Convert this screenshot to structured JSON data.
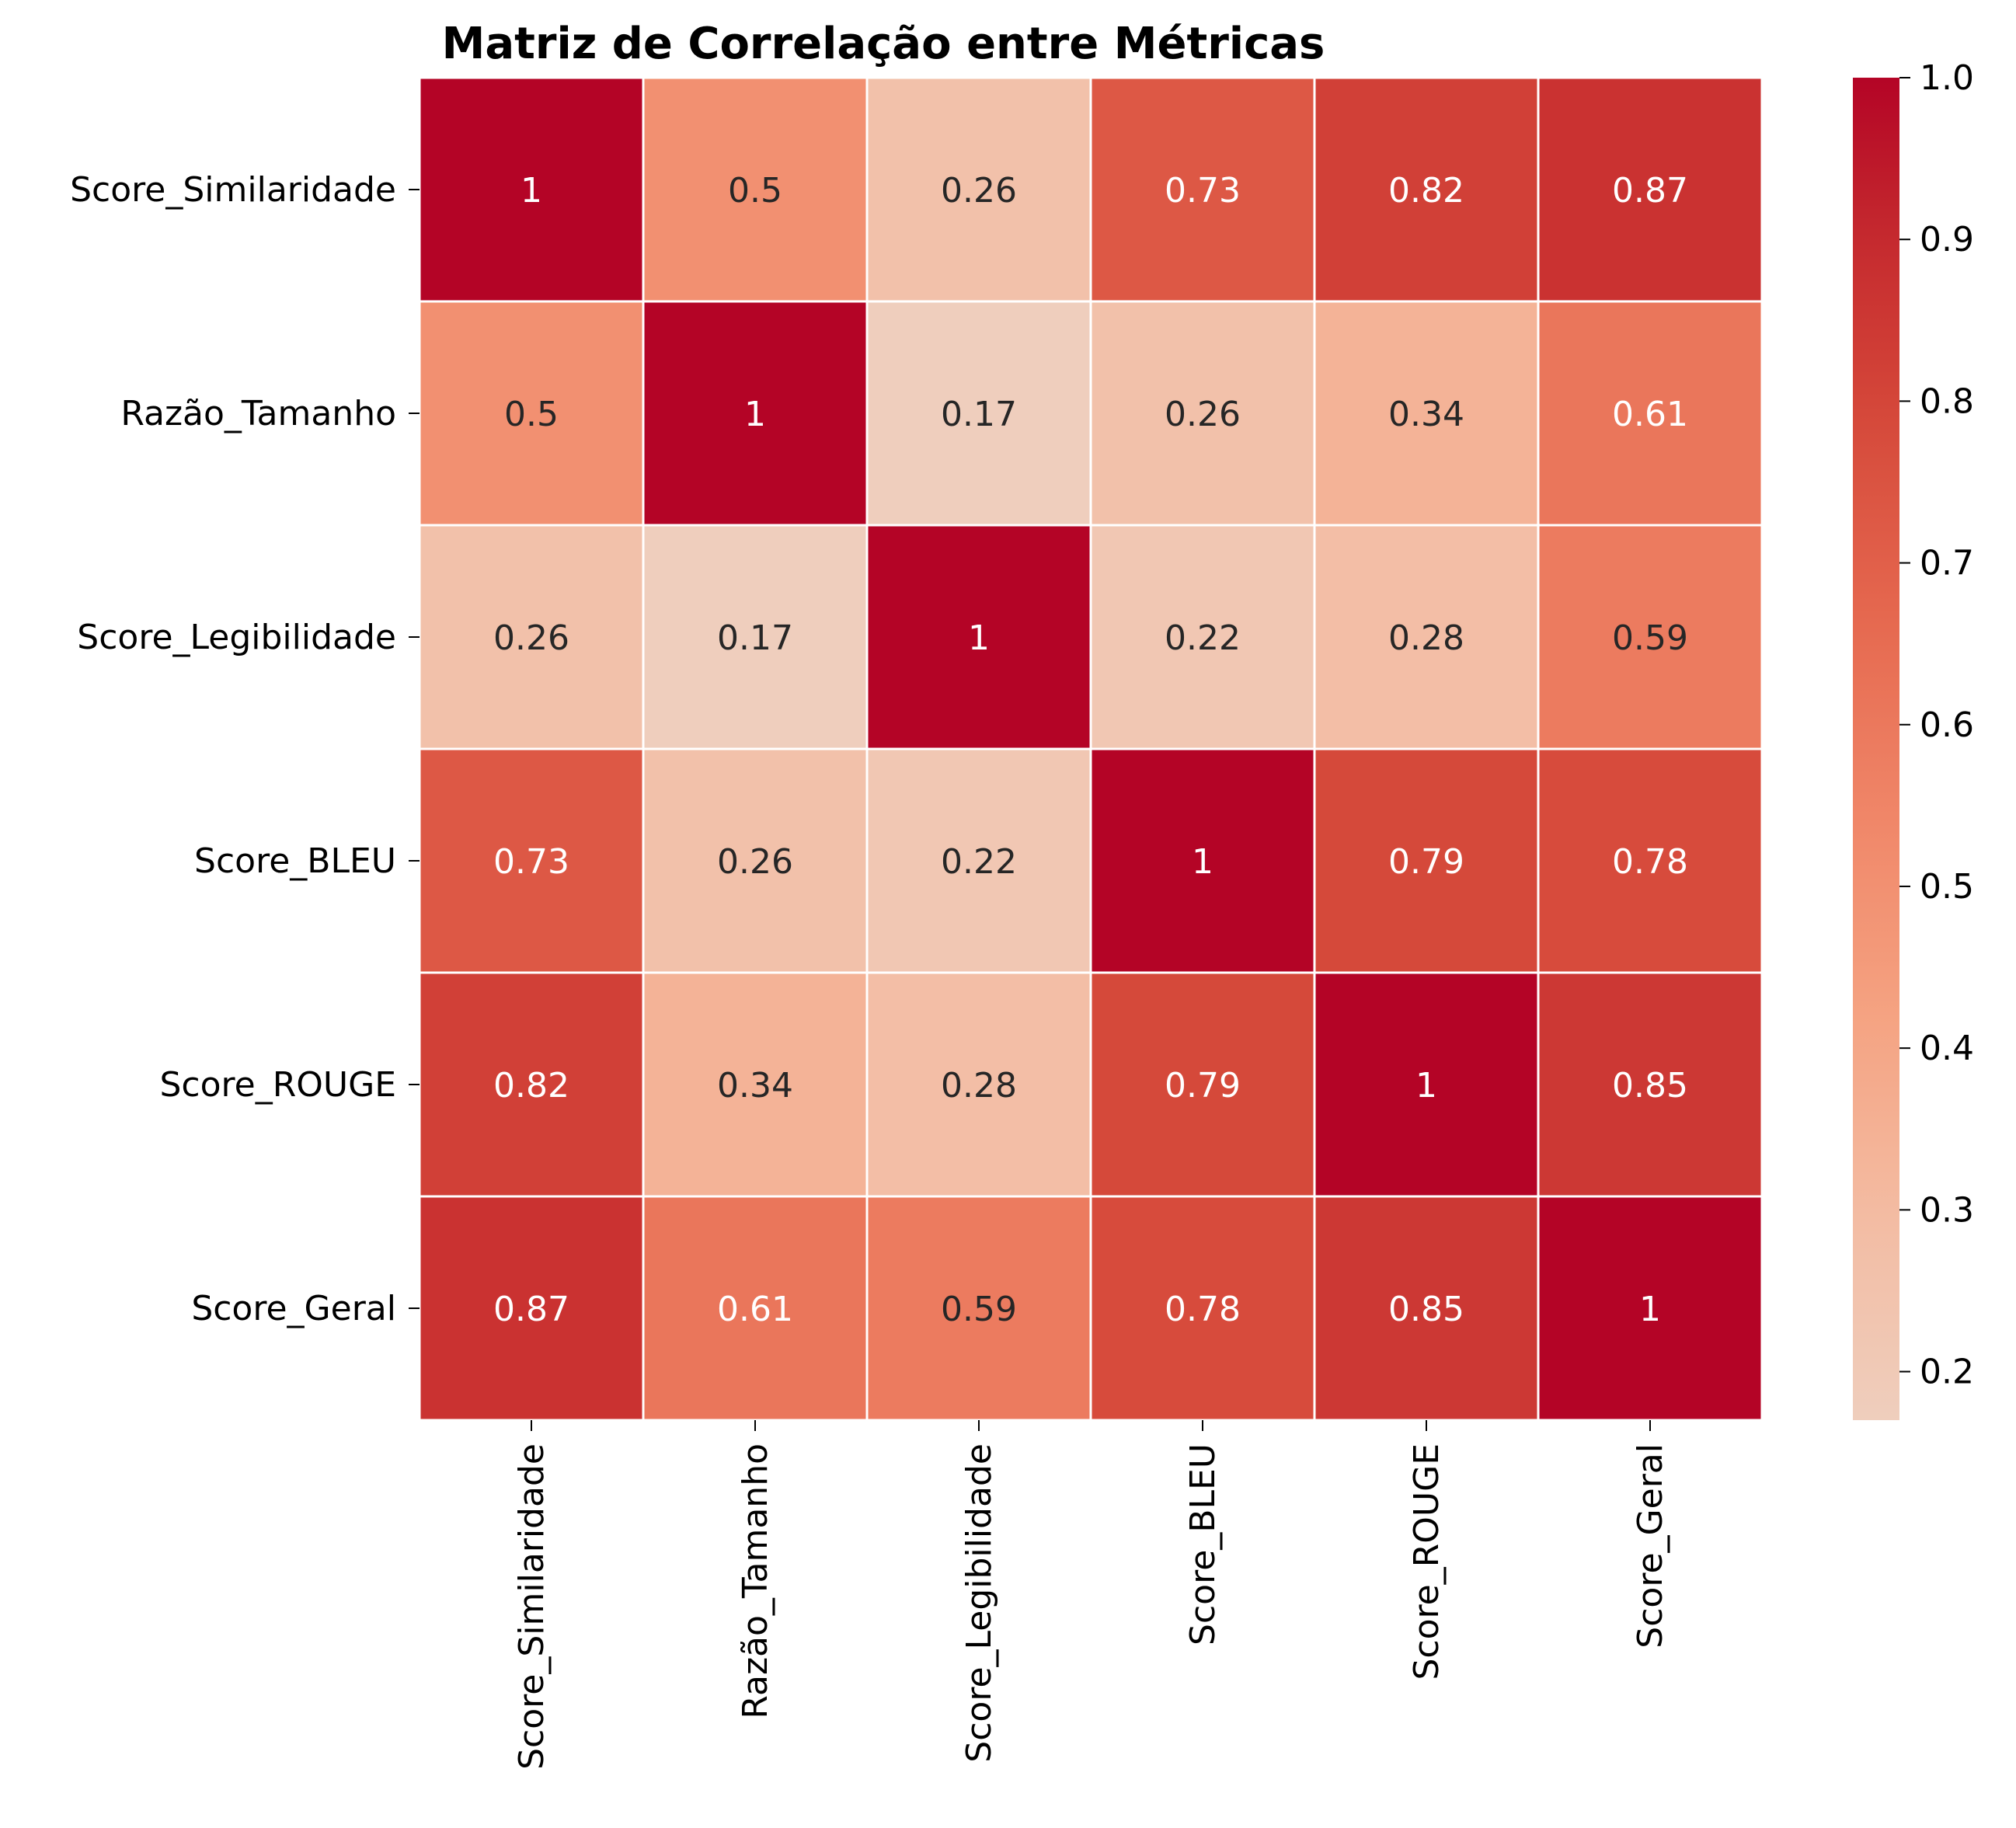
{
  "chart_data": {
    "type": "heatmap",
    "title": "Matriz de Correlação entre Métricas",
    "rows": [
      "Score_Similaridade",
      "Razão_Tamanho",
      "Score_Legibilidade",
      "Score_BLEU",
      "Score_ROUGE",
      "Score_Geral"
    ],
    "columns": [
      "Score_Similaridade",
      "Razão_Tamanho",
      "Score_Legibilidade",
      "Score_BLEU",
      "Score_ROUGE",
      "Score_Geral"
    ],
    "values": [
      [
        1,
        0.5,
        0.26,
        0.73,
        0.82,
        0.87
      ],
      [
        0.5,
        1,
        0.17,
        0.26,
        0.34,
        0.61
      ],
      [
        0.26,
        0.17,
        1,
        0.22,
        0.28,
        0.59
      ],
      [
        0.73,
        0.26,
        0.22,
        1,
        0.79,
        0.78
      ],
      [
        0.82,
        0.34,
        0.28,
        0.79,
        1,
        0.85
      ],
      [
        0.87,
        0.61,
        0.59,
        0.78,
        0.85,
        1
      ]
    ],
    "value_labels": [
      [
        "1",
        "0.5",
        "0.26",
        "0.73",
        "0.82",
        "0.87"
      ],
      [
        "0.5",
        "1",
        "0.17",
        "0.26",
        "0.34",
        "0.61"
      ],
      [
        "0.26",
        "0.17",
        "1",
        "0.22",
        "0.28",
        "0.59"
      ],
      [
        "0.73",
        "0.26",
        "0.22",
        "1",
        "0.79",
        "0.78"
      ],
      [
        "0.82",
        "0.34",
        "0.28",
        "0.79",
        "1",
        "0.85"
      ],
      [
        "0.87",
        "0.61",
        "0.59",
        "0.78",
        "0.85",
        "1"
      ]
    ],
    "colorbar": {
      "colormap": "coolwarm (upper half)",
      "min": 0.17,
      "max": 1.0,
      "ticks": [
        0.2,
        0.3,
        0.4,
        0.5,
        0.6,
        0.7,
        0.8,
        0.9,
        1.0
      ],
      "tick_labels": [
        "0.2",
        "0.3",
        "0.4",
        "0.5",
        "0.6",
        "0.7",
        "0.8",
        "0.9",
        "1.0"
      ]
    },
    "colors": {
      "low": "#efcebd",
      "high": "#b40426",
      "cell_border": "#ffffff",
      "text_dark": "#262626",
      "text_light": "#ffffff"
    }
  }
}
